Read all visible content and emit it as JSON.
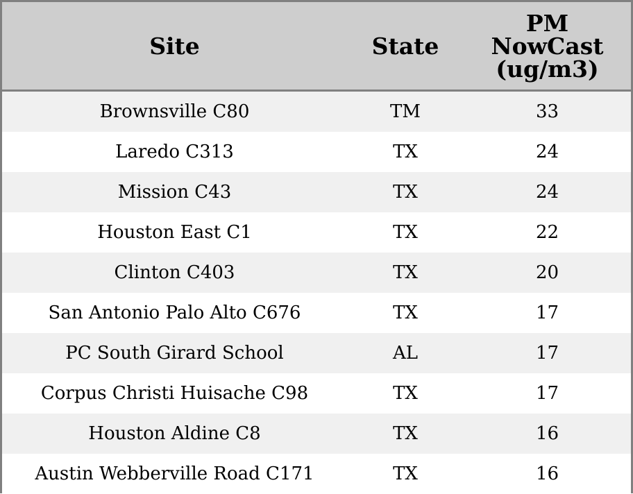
{
  "chart_data": {
    "type": "table",
    "columns": [
      "Site",
      "State",
      "PM\nNowCast\n(ug/m3)"
    ],
    "rows": [
      {
        "site": "Brownsville C80",
        "state": "TM",
        "pm": "33"
      },
      {
        "site": "Laredo C313",
        "state": "TX",
        "pm": "24"
      },
      {
        "site": "Mission C43",
        "state": "TX",
        "pm": "24"
      },
      {
        "site": "Houston East C1",
        "state": "TX",
        "pm": "22"
      },
      {
        "site": "Clinton C403",
        "state": "TX",
        "pm": "20"
      },
      {
        "site": "San Antonio Palo Alto C676",
        "state": "TX",
        "pm": "17"
      },
      {
        "site": "PC South Girard School",
        "state": "AL",
        "pm": "17"
      },
      {
        "site": "Corpus Christi Huisache C98",
        "state": "TX",
        "pm": "17"
      },
      {
        "site": "Houston Aldine C8",
        "state": "TX",
        "pm": "16"
      },
      {
        "site": "Austin Webberville Road C171",
        "state": "TX",
        "pm": "16"
      }
    ]
  },
  "colors": {
    "header_bg": "#cecece",
    "row_stripe": "#f0f0f0",
    "row_plain": "#ffffff",
    "border": "#808080"
  }
}
